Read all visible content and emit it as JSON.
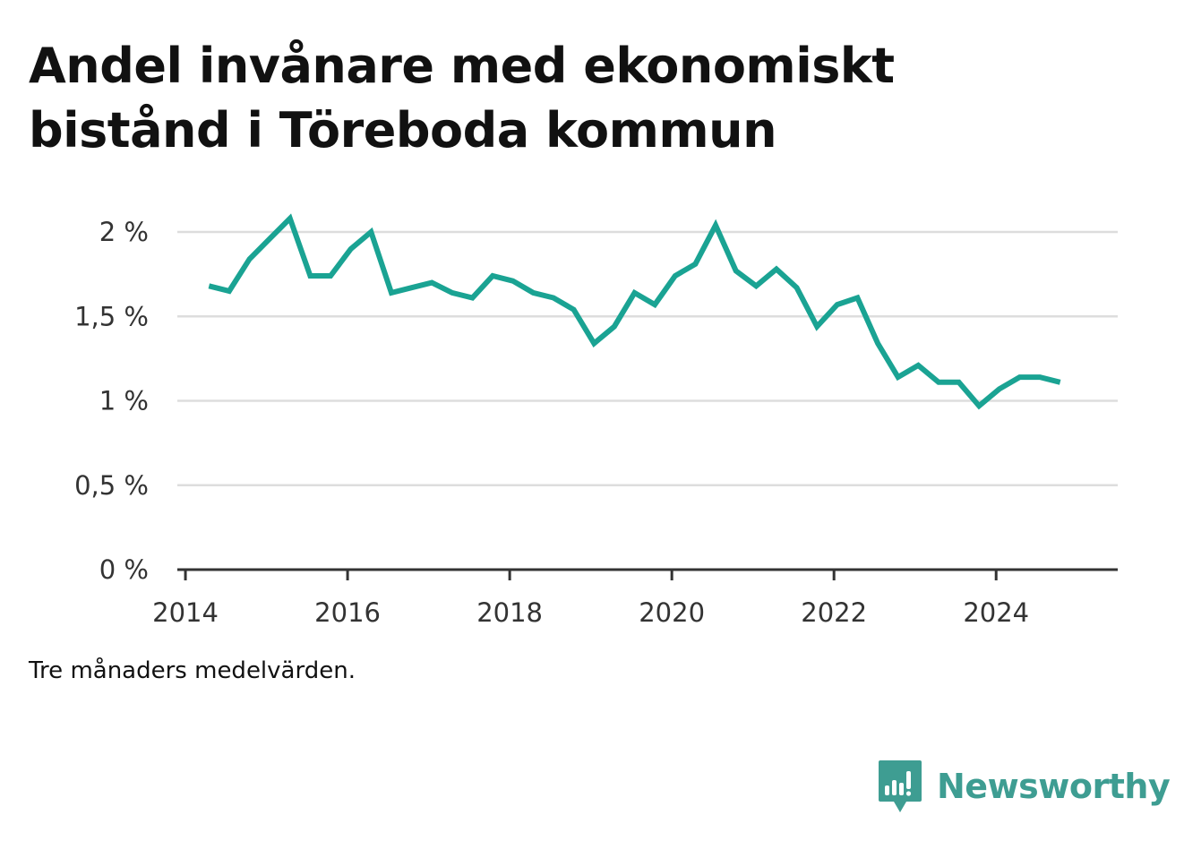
{
  "header": {
    "title": "Andel invånare med ekonomiskt bistånd i Töreboda kommun"
  },
  "footer": {
    "caption": "Tre månaders medelvärden.",
    "brand": "Newsworthy"
  },
  "colors": {
    "line": "#1aa393",
    "grid": "#dddddd",
    "axis": "#333333",
    "brand": "#3e9d92"
  },
  "icons": {
    "brand_logo": "bar-chart-speech-bubble-icon"
  },
  "chart_data": {
    "type": "line",
    "title": "Andel invånare med ekonomiskt bistånd i Töreboda kommun",
    "xlabel": "",
    "ylabel": "",
    "xlim": [
      2013.9,
      2025.5
    ],
    "ylim": [
      0,
      2
    ],
    "grid": true,
    "legend": "none",
    "x_ticks": [
      {
        "value": 2014,
        "label": "2014"
      },
      {
        "value": 2016,
        "label": "2016"
      },
      {
        "value": 2018,
        "label": "2018"
      },
      {
        "value": 2020,
        "label": "2020"
      },
      {
        "value": 2022,
        "label": "2022"
      },
      {
        "value": 2024,
        "label": "2024"
      }
    ],
    "y_ticks": [
      {
        "value": 0,
        "label": "0 %"
      },
      {
        "value": 0.5,
        "label": "0,5 %"
      },
      {
        "value": 1,
        "label": "1 %"
      },
      {
        "value": 1.5,
        "label": "1,5 %"
      },
      {
        "value": 2,
        "label": "2 %"
      }
    ],
    "series": [
      {
        "values": [
          [
            2014.29,
            1.68
          ],
          [
            2014.54,
            1.65
          ],
          [
            2014.79,
            1.84
          ],
          [
            2015.04,
            1.96
          ],
          [
            2015.29,
            2.08
          ],
          [
            2015.54,
            1.74
          ],
          [
            2015.79,
            1.74
          ],
          [
            2016.04,
            1.9
          ],
          [
            2016.29,
            2.0
          ],
          [
            2016.54,
            1.64
          ],
          [
            2016.79,
            1.67
          ],
          [
            2017.04,
            1.7
          ],
          [
            2017.29,
            1.64
          ],
          [
            2017.54,
            1.61
          ],
          [
            2017.79,
            1.74
          ],
          [
            2018.04,
            1.71
          ],
          [
            2018.29,
            1.64
          ],
          [
            2018.54,
            1.61
          ],
          [
            2018.79,
            1.54
          ],
          [
            2019.04,
            1.34
          ],
          [
            2019.29,
            1.44
          ],
          [
            2019.54,
            1.64
          ],
          [
            2019.79,
            1.57
          ],
          [
            2020.04,
            1.74
          ],
          [
            2020.29,
            1.81
          ],
          [
            2020.54,
            2.04
          ],
          [
            2020.79,
            1.77
          ],
          [
            2021.04,
            1.68
          ],
          [
            2021.29,
            1.78
          ],
          [
            2021.54,
            1.67
          ],
          [
            2021.79,
            1.44
          ],
          [
            2022.04,
            1.57
          ],
          [
            2022.29,
            1.61
          ],
          [
            2022.54,
            1.34
          ],
          [
            2022.79,
            1.14
          ],
          [
            2023.04,
            1.21
          ],
          [
            2023.29,
            1.11
          ],
          [
            2023.54,
            1.11
          ],
          [
            2023.79,
            0.97
          ],
          [
            2024.04,
            1.07
          ],
          [
            2024.29,
            1.14
          ],
          [
            2024.54,
            1.14
          ],
          [
            2024.79,
            1.11
          ]
        ]
      }
    ]
  }
}
